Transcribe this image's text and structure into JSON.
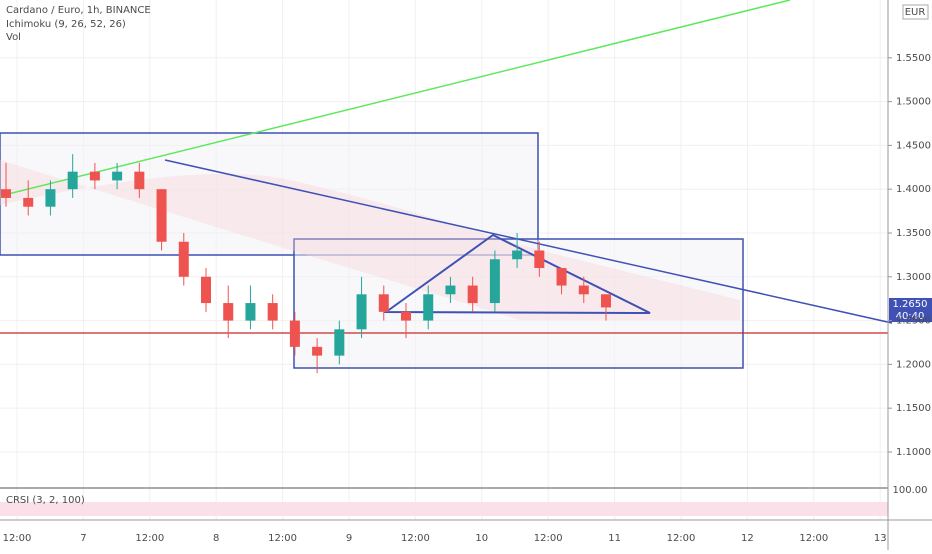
{
  "header": {
    "symbol": "Cardano / Euro, 1h, BINANCE",
    "ichimoku": "Ichimoku (9, 26, 52, 26)",
    "vol": "Vol"
  },
  "price_tag": {
    "price": "1.2650",
    "countdown": "40:40"
  },
  "crsi": {
    "label": "CRSI (3, 2, 100)",
    "tick": "100.00"
  },
  "chart_data": {
    "type": "candlestick",
    "currency": "EUR",
    "ylim": [
      1.06,
      1.616
    ],
    "yticks": [
      {
        "value": 1.1,
        "label": "1.1000"
      },
      {
        "value": 1.15,
        "label": "1.1500"
      },
      {
        "value": 1.2,
        "label": "1.2000"
      },
      {
        "value": 1.25,
        "label": "1.2500"
      },
      {
        "value": 1.3,
        "label": "1.3000"
      },
      {
        "value": 1.35,
        "label": "1.3500"
      },
      {
        "value": 1.4,
        "label": "1.4000"
      },
      {
        "value": 1.45,
        "label": "1.4500"
      },
      {
        "value": 1.5,
        "label": "1.5000"
      },
      {
        "value": 1.55,
        "label": "1.5500"
      }
    ],
    "xticks": [
      "12:00",
      "7",
      "12:00",
      "8",
      "12:00",
      "9",
      "12:00",
      "10",
      "12:00",
      "11",
      "12:00",
      "12",
      "12:00",
      "13"
    ],
    "up_color": "#26a69a",
    "down_color": "#ef5350",
    "candles": [
      {
        "open": 1.4,
        "high": 1.43,
        "low": 1.38,
        "close": 1.39
      },
      {
        "open": 1.39,
        "high": 1.41,
        "low": 1.37,
        "close": 1.38
      },
      {
        "open": 1.38,
        "high": 1.41,
        "low": 1.37,
        "close": 1.4
      },
      {
        "open": 1.4,
        "high": 1.44,
        "low": 1.39,
        "close": 1.42
      },
      {
        "open": 1.42,
        "high": 1.43,
        "low": 1.4,
        "close": 1.41
      },
      {
        "open": 1.41,
        "high": 1.43,
        "low": 1.4,
        "close": 1.42
      },
      {
        "open": 1.42,
        "high": 1.43,
        "low": 1.39,
        "close": 1.4
      },
      {
        "open": 1.4,
        "high": 1.4,
        "low": 1.33,
        "close": 1.34
      },
      {
        "open": 1.34,
        "high": 1.35,
        "low": 1.29,
        "close": 1.3
      },
      {
        "open": 1.3,
        "high": 1.31,
        "low": 1.26,
        "close": 1.27
      },
      {
        "open": 1.27,
        "high": 1.29,
        "low": 1.23,
        "close": 1.25
      },
      {
        "open": 1.25,
        "high": 1.29,
        "low": 1.24,
        "close": 1.27
      },
      {
        "open": 1.27,
        "high": 1.28,
        "low": 1.24,
        "close": 1.25
      },
      {
        "open": 1.25,
        "high": 1.26,
        "low": 1.21,
        "close": 1.22
      },
      {
        "open": 1.22,
        "high": 1.23,
        "low": 1.19,
        "close": 1.21
      },
      {
        "open": 1.21,
        "high": 1.25,
        "low": 1.2,
        "close": 1.24
      },
      {
        "open": 1.24,
        "high": 1.3,
        "low": 1.23,
        "close": 1.28
      },
      {
        "open": 1.28,
        "high": 1.29,
        "low": 1.25,
        "close": 1.26
      },
      {
        "open": 1.26,
        "high": 1.27,
        "low": 1.23,
        "close": 1.25
      },
      {
        "open": 1.25,
        "high": 1.29,
        "low": 1.24,
        "close": 1.28
      },
      {
        "open": 1.28,
        "high": 1.3,
        "low": 1.27,
        "close": 1.29
      },
      {
        "open": 1.29,
        "high": 1.3,
        "low": 1.26,
        "close": 1.27
      },
      {
        "open": 1.27,
        "high": 1.33,
        "low": 1.26,
        "close": 1.32
      },
      {
        "open": 1.32,
        "high": 1.35,
        "low": 1.31,
        "close": 1.33
      },
      {
        "open": 1.33,
        "high": 1.34,
        "low": 1.3,
        "close": 1.31
      },
      {
        "open": 1.31,
        "high": 1.31,
        "low": 1.28,
        "close": 1.29
      },
      {
        "open": 1.29,
        "high": 1.3,
        "low": 1.27,
        "close": 1.28
      },
      {
        "open": 1.28,
        "high": 1.28,
        "low": 1.25,
        "close": 1.265
      }
    ]
  }
}
